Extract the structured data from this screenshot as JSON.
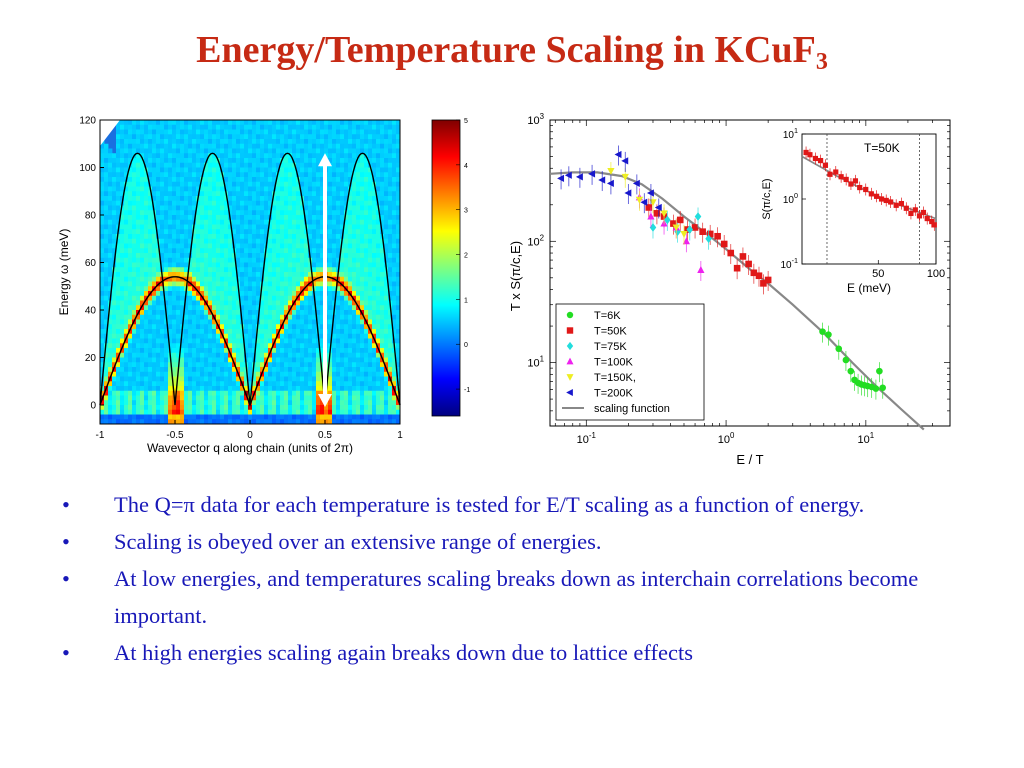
{
  "slide": {
    "title_main": "Energy/Temperature Scaling in  KCuF",
    "title_sub": "3",
    "bullets": [
      {
        "pre": "The Q=",
        "sym": "π",
        "post": " data for each temperature is tested for E/T scaling as a function of energy."
      },
      {
        "text": "Scaling is obeyed over an extensive range of energies."
      },
      {
        "text": "At low energies, and temperatures scaling breaks down as interchain correlations become important."
      },
      {
        "text": "At high energies scaling again breaks down due to lattice effects"
      }
    ],
    "bullet_char": "•",
    "colors": {
      "title": "#c62a14",
      "bullets": "#1818b8"
    }
  },
  "chart_data": [
    {
      "type": "heatmap",
      "xlabel": "Wavevector q along chain (units of 2π)",
      "ylabel": "Energy ω (meV)",
      "xlim": [
        -1,
        1
      ],
      "ylim": [
        -8,
        120
      ],
      "x_ticks": [
        "-1",
        "-0.5",
        "0",
        "0.5",
        "1"
      ],
      "y_ticks": [
        "0",
        "20",
        "40",
        "60",
        "80",
        "100",
        "120"
      ],
      "colorbar_ticks": [
        "-1",
        "0",
        "1",
        "2",
        "3",
        "4",
        "5"
      ],
      "colorbar_range": [
        -1.6,
        5
      ],
      "colormap": "jet",
      "curves": [
        {
          "kind": "upper_boundary",
          "max_energy": 106
        },
        {
          "kind": "lower_boundary",
          "max_energy": 54
        }
      ],
      "arrow": {
        "q": 0.5,
        "from_energy": 0,
        "to_energy": 106,
        "color": "#ffffff"
      }
    },
    {
      "type": "scatter",
      "xlabel": "E / T",
      "ylabel": "T x S(π/c,E)",
      "x_scale": "log",
      "y_scale": "log",
      "xlim": [
        0.055,
        40
      ],
      "ylim": [
        3,
        1000
      ],
      "x_ticks": [
        {
          "v": 0.1,
          "m": "10",
          "e": "-1"
        },
        {
          "v": 1,
          "m": "10",
          "e": "0"
        },
        {
          "v": 10,
          "m": "10",
          "e": "1"
        }
      ],
      "y_ticks": [
        {
          "v": 10,
          "m": "10",
          "e": "1"
        },
        {
          "v": 100,
          "m": "10",
          "e": "2"
        },
        {
          "v": 1000,
          "m": "10",
          "e": "3"
        }
      ],
      "legend_position": "bottom-left",
      "series": [
        {
          "name": "T=6K",
          "color": "#22dd22",
          "marker": "circle",
          "x": [
            4.9,
            5.4,
            6.4,
            7.2,
            7.8,
            8.3,
            8.8,
            9.3,
            9.8,
            10.3,
            11,
            11.8,
            12.5,
            13.2
          ],
          "y": [
            18,
            17,
            13,
            10.5,
            8.5,
            7.2,
            6.8,
            6.6,
            6.5,
            6.4,
            6.3,
            6.1,
            8.5,
            6.2
          ]
        },
        {
          "name": "T=50K",
          "color": "#e01818",
          "marker": "square",
          "x": [
            0.28,
            0.32,
            0.36,
            0.42,
            0.47,
            0.53,
            0.6,
            0.68,
            0.77,
            0.87,
            0.97,
            1.08,
            1.2,
            1.32,
            1.45,
            1.58,
            1.72,
            1.85,
            2.0
          ],
          "y": [
            190,
            170,
            160,
            140,
            150,
            125,
            130,
            120,
            115,
            110,
            95,
            80,
            60,
            75,
            65,
            55,
            52,
            45,
            48
          ]
        },
        {
          "name": "T=75K",
          "color": "#22dddd",
          "marker": "diamond",
          "x": [
            0.3,
            0.38,
            0.45,
            0.55,
            0.63,
            0.75
          ],
          "y": [
            130,
            150,
            120,
            125,
            160,
            105
          ]
        },
        {
          "name": "T=100K",
          "color": "#ee22ee",
          "marker": "triangle-up",
          "x": [
            0.24,
            0.29,
            0.36,
            0.44,
            0.52,
            0.66
          ],
          "y": [
            230,
            160,
            140,
            130,
            100,
            58
          ]
        },
        {
          "name": "T=150K,",
          "color": "#eeee22",
          "marker": "triangle-down",
          "x": [
            0.15,
            0.19,
            0.24,
            0.3,
            0.36,
            0.44,
            0.5
          ],
          "y": [
            380,
            340,
            220,
            210,
            170,
            130,
            115
          ]
        },
        {
          "name": "T=200K",
          "color": "#1818cc",
          "marker": "triangle-left",
          "x": [
            0.066,
            0.075,
            0.09,
            0.11,
            0.13,
            0.15,
            0.17,
            0.19,
            0.2,
            0.23,
            0.26,
            0.29,
            0.33
          ],
          "y": [
            330,
            350,
            340,
            360,
            320,
            300,
            520,
            460,
            250,
            300,
            210,
            250,
            190
          ]
        }
      ],
      "scaling_function": {
        "name": "scaling function",
        "color": "#888888",
        "x": [
          0.055,
          0.08,
          0.12,
          0.18,
          0.25,
          0.35,
          0.5,
          0.75,
          1,
          1.5,
          2,
          3,
          5,
          8,
          12,
          18,
          26
        ],
        "y": [
          360,
          370,
          370,
          345,
          295,
          225,
          160,
          112,
          86,
          58,
          45,
          30,
          17.5,
          10,
          6.3,
          4.1,
          2.8
        ]
      },
      "inset": {
        "label": "T=50K",
        "xlabel": "E (meV)",
        "ylabel": "S(π/c,E)",
        "x_scale": "log",
        "y_scale": "log",
        "xlim": [
          20,
          100
        ],
        "ylim": [
          0.1,
          10
        ],
        "x_ticks": [
          "50",
          "100"
        ],
        "y_ticks": [
          {
            "v": 0.1,
            "m": "10",
            "e": "-1"
          },
          {
            "v": 1,
            "m": "10",
            "e": "0"
          },
          {
            "v": 10,
            "m": "10",
            "e": "1"
          }
        ],
        "dotted_lines_x": [
          27,
          82
        ],
        "series": {
          "color": "#e01818",
          "x": [
            21,
            22,
            23.5,
            25,
            26.5,
            28,
            30,
            32,
            34,
            36,
            38,
            40,
            43,
            46,
            49,
            52,
            55,
            58,
            62,
            66,
            70,
            74,
            78,
            82,
            86,
            90,
            95,
            98
          ],
          "y": [
            5.2,
            4.8,
            4.2,
            3.9,
            3.3,
            2.4,
            2.6,
            2.2,
            2.0,
            1.7,
            1.9,
            1.5,
            1.4,
            1.2,
            1.1,
            1.0,
            0.95,
            0.9,
            0.8,
            0.85,
            0.72,
            0.6,
            0.68,
            0.55,
            0.62,
            0.5,
            0.45,
            0.4
          ]
        },
        "fit": {
          "color": "#888888",
          "x": [
            20,
            30,
            40,
            50,
            60,
            70,
            80,
            90,
            100
          ],
          "y": [
            4.5,
            2.3,
            1.5,
            1.1,
            0.88,
            0.74,
            0.64,
            0.56,
            0.5
          ]
        }
      }
    }
  ]
}
